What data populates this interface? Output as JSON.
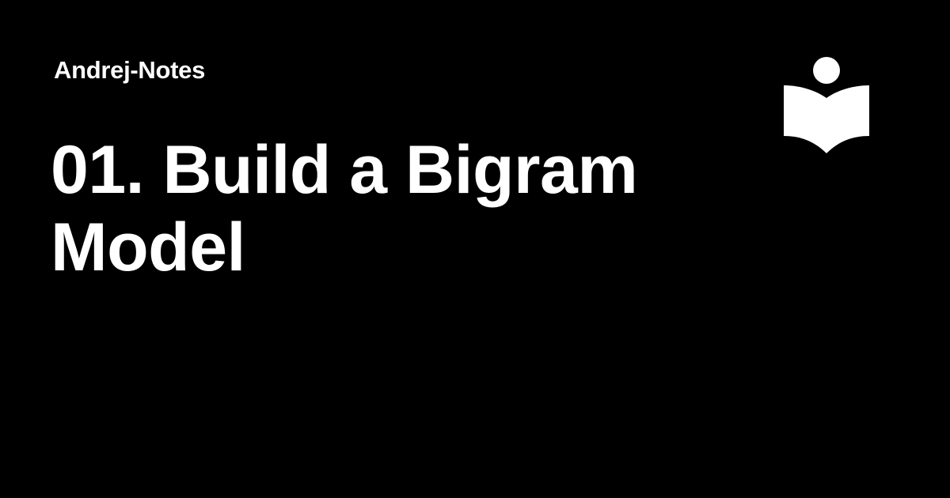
{
  "site": {
    "name": "Andrej-Notes"
  },
  "page": {
    "title": "01. Build a Bigram Model"
  },
  "logo": {
    "icon": "reader-book-icon"
  },
  "colors": {
    "background": "#000000",
    "text": "#ffffff",
    "logo": "#ffffff"
  }
}
